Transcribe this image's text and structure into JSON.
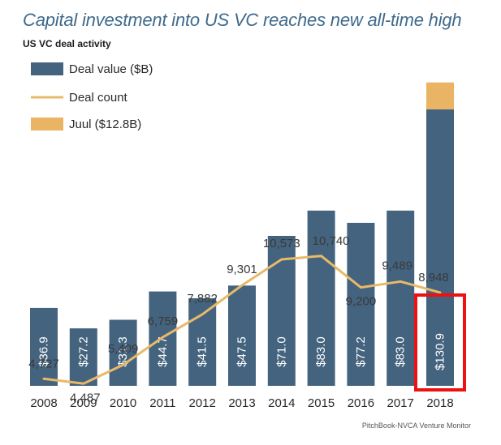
{
  "header": {
    "title": "Capital investment into US VC reaches new all-time high",
    "subtitle": "US VC deal activity"
  },
  "source": "PitchBook-NVCA Venture Monitor",
  "colors": {
    "bar": "#44637e",
    "line": "#e8b969",
    "juul": "#e9b464",
    "highlight": "#ee1111",
    "title": "#3f6a8c"
  },
  "chart_data": {
    "type": "bar",
    "title": "Capital investment into US VC reaches new all-time high",
    "subtitle": "US VC deal activity",
    "categories": [
      "2008",
      "2009",
      "2010",
      "2011",
      "2012",
      "2013",
      "2014",
      "2015",
      "2016",
      "2017",
      "2018"
    ],
    "series": [
      {
        "name": "Deal value ($B)",
        "type": "bar",
        "values": [
          36.9,
          27.2,
          31.3,
          44.7,
          41.5,
          47.5,
          71.0,
          83.0,
          77.2,
          83.0,
          130.9
        ],
        "labels": [
          "$36.9",
          "$27.2",
          "$31.3",
          "$44.7",
          "$41.5",
          "$47.5",
          "$71.0",
          "$83.0",
          "$77.2",
          "$83.0",
          "$130.9"
        ]
      },
      {
        "name": "Deal count",
        "type": "line",
        "values": [
          4727,
          4487,
          5409,
          6759,
          7882,
          9301,
          10573,
          10740,
          9200,
          9489,
          8948
        ],
        "labels": [
          "4,727",
          "4,487",
          "5,409",
          "6,759",
          "7,882",
          "9,301",
          "10,573",
          "10,740",
          "9,200",
          "9,489",
          "8,948"
        ]
      },
      {
        "name": "Juul ($12.8B)",
        "type": "stacked-bar",
        "category": "2018",
        "value": 12.8
      }
    ],
    "legend": [
      "Deal value ($B)",
      "Deal count",
      "Juul ($12.8B)"
    ],
    "legend_position": "top-left",
    "highlighted_category": "2018",
    "grid": false
  }
}
